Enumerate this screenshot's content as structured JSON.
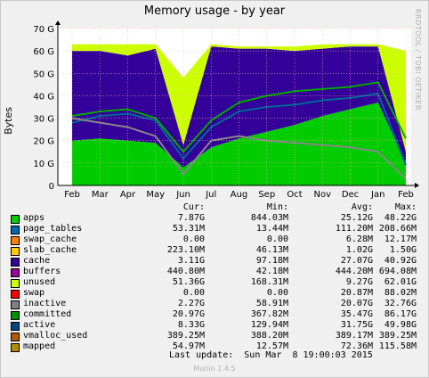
{
  "chart_data": {
    "type": "area",
    "title": "Memory usage - by year",
    "ylabel": "Bytes",
    "side_text": "RRDTOOL / TOBI OETIKER",
    "yticks": [
      "0",
      "10 G",
      "20 G",
      "30 G",
      "40 G",
      "50 G",
      "60 G",
      "70 G"
    ],
    "ylim": [
      0,
      70
    ],
    "xticks": [
      "Feb",
      "Mar",
      "Apr",
      "May",
      "Jun",
      "Jul",
      "Aug",
      "Sep",
      "Oct",
      "Nov",
      "Dec",
      "Jan",
      "Feb"
    ],
    "grid": true,
    "x": [
      "Feb",
      "Mar",
      "Apr",
      "May",
      "Jun",
      "Jul",
      "Aug",
      "Sep",
      "Oct",
      "Nov",
      "Dec",
      "Jan",
      "Feb"
    ],
    "series": [
      {
        "name": "apps",
        "color": "#00cc00",
        "values": [
          20,
          21,
          20,
          19,
          8,
          17,
          21,
          24,
          27,
          31,
          34,
          37,
          10
        ]
      },
      {
        "name": "cache",
        "color": "#330099",
        "values": [
          40,
          39,
          38,
          42,
          10,
          45,
          40,
          37,
          33,
          30,
          28,
          25,
          5
        ]
      },
      {
        "name": "unused",
        "color": "#ccff00",
        "values": [
          3,
          3,
          5,
          2,
          30,
          1,
          1,
          1,
          2,
          2,
          1,
          1,
          45
        ]
      },
      {
        "name": "committed",
        "color": "#00aa00",
        "values": [
          31,
          33,
          34,
          30,
          15,
          29,
          37,
          40,
          42,
          43,
          44,
          46,
          21
        ]
      },
      {
        "name": "active",
        "color": "#006699",
        "values": [
          28,
          31,
          32,
          29,
          12,
          26,
          33,
          35,
          36,
          38,
          39,
          41,
          9
        ]
      },
      {
        "name": "inactive",
        "color": "#888888",
        "values": [
          30,
          28,
          26,
          22,
          5,
          20,
          22,
          20,
          19,
          18,
          17,
          15,
          3
        ]
      }
    ],
    "legend_header": {
      "cur": "Cur:",
      "min": "Min:",
      "avg": "Avg:",
      "max": "Max:"
    },
    "legend": [
      {
        "name": "apps",
        "color": "#00cc00",
        "cur": "7.87G",
        "min": "844.03M",
        "avg": "25.12G",
        "max": "48.22G"
      },
      {
        "name": "page_tables",
        "color": "#0066b3",
        "cur": "53.31M",
        "min": "13.44M",
        "avg": "111.20M",
        "max": "208.66M"
      },
      {
        "name": "swap_cache",
        "color": "#ff8000",
        "cur": "0.00",
        "min": "0.00",
        "avg": "6.28M",
        "max": "12.17M"
      },
      {
        "name": "slab_cache",
        "color": "#ffcc00",
        "cur": "223.10M",
        "min": "46.13M",
        "avg": "1.02G",
        "max": "1.50G"
      },
      {
        "name": "cache",
        "color": "#330099",
        "cur": "3.11G",
        "min": "97.18M",
        "avg": "27.07G",
        "max": "40.92G"
      },
      {
        "name": "buffers",
        "color": "#990099",
        "cur": "440.80M",
        "min": "42.18M",
        "avg": "444.20M",
        "max": "694.08M"
      },
      {
        "name": "unused",
        "color": "#ccff00",
        "cur": "51.36G",
        "min": "168.31M",
        "avg": "9.27G",
        "max": "62.01G"
      },
      {
        "name": "swap",
        "color": "#ff0000",
        "cur": "0.00",
        "min": "0.00",
        "avg": "20.87M",
        "max": "88.02M"
      },
      {
        "name": "inactive",
        "color": "#808080",
        "cur": "2.27G",
        "min": "58.91M",
        "avg": "20.07G",
        "max": "32.76G"
      },
      {
        "name": "committed",
        "color": "#008f00",
        "cur": "20.97G",
        "min": "367.82M",
        "avg": "35.47G",
        "max": "86.17G"
      },
      {
        "name": "active",
        "color": "#00487d",
        "cur": "8.33G",
        "min": "129.94M",
        "avg": "31.75G",
        "max": "49.98G"
      },
      {
        "name": "vmalloc_used",
        "color": "#b35a00",
        "cur": "389.25M",
        "min": "388.20M",
        "avg": "389.17M",
        "max": "389.25M"
      },
      {
        "name": "mapped",
        "color": "#b38f00",
        "cur": "54.97M",
        "min": "12.57M",
        "avg": "72.36M",
        "max": "115.58M"
      }
    ],
    "last_update": "Last update:  Sun Mar  8 19:00:03 2015",
    "version": "Munin 1.4.5"
  }
}
